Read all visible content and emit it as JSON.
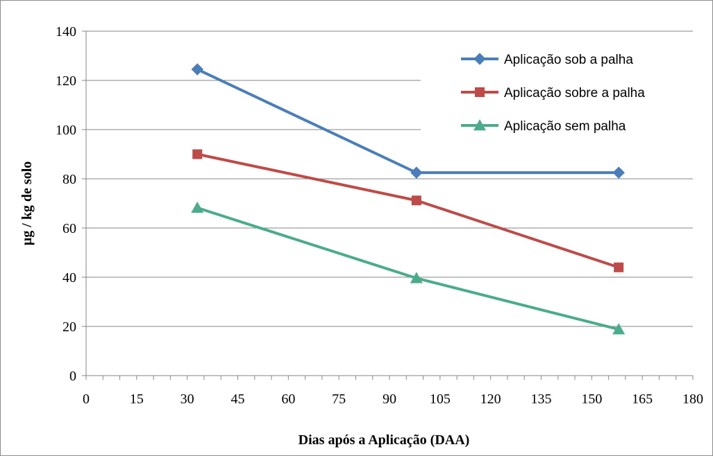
{
  "chart_data": {
    "type": "line",
    "title": "",
    "xlabel": "Dias após a Aplicação (DAA)",
    "ylabel": "µg / kg de solo",
    "xlim": [
      0,
      180
    ],
    "ylim": [
      0,
      140
    ],
    "x_ticks": [
      "0",
      "15",
      "30",
      "45",
      "60",
      "75",
      "90",
      "105",
      "120",
      "135",
      "150",
      "165",
      "180"
    ],
    "y_ticks": [
      "0",
      "20",
      "40",
      "60",
      "80",
      "100",
      "120",
      "140"
    ],
    "grid": "horizontal",
    "legend_position": "top-right",
    "x": [
      33,
      98,
      158
    ],
    "series": [
      {
        "name": "Aplicação sob a palha",
        "values": [
          124.5,
          82.5,
          82.5
        ],
        "color": "#4a7ebb",
        "marker": "diamond"
      },
      {
        "name": "Aplicação sobre a palha",
        "values": [
          90,
          71.2,
          44
        ],
        "color": "#be4b48",
        "marker": "square"
      },
      {
        "name": "Aplicação sem palha",
        "values": [
          68.2,
          39.6,
          18.8
        ],
        "color": "#4bac8c",
        "marker": "triangle"
      }
    ]
  }
}
